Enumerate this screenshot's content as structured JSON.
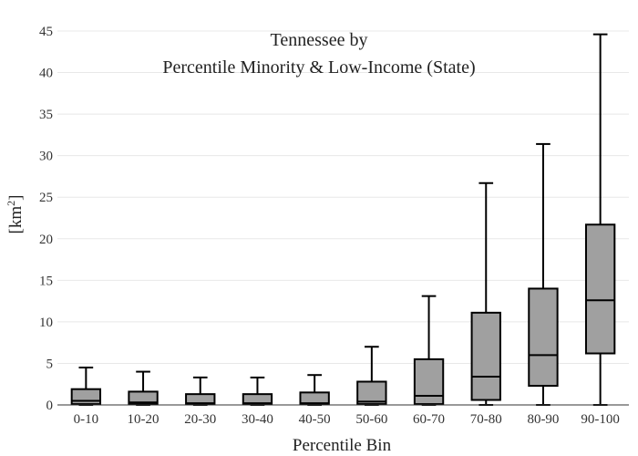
{
  "chart_data": {
    "type": "box",
    "title_lines": [
      "Tennessee  by",
      "Percentile Minority & Low-Income (State)"
    ],
    "xlabel": "Percentile Bin",
    "ylabel_base": "[km",
    "ylabel_sup": "2",
    "ylabel_end": "]",
    "categories": [
      "0-10",
      "10-20",
      "20-30",
      "30-40",
      "40-50",
      "50-60",
      "60-70",
      "70-80",
      "80-90",
      "90-100"
    ],
    "ylim": [
      0,
      45
    ],
    "yticks": [
      0,
      5,
      10,
      15,
      20,
      25,
      30,
      35,
      40,
      45
    ],
    "grid": true,
    "box_color": "#a0a0a0",
    "line_color": "#000000",
    "boxes": [
      {
        "category": "0-10",
        "low": 0,
        "q1": 0.1,
        "median": 0.5,
        "q3": 1.9,
        "high": 4.5
      },
      {
        "category": "10-20",
        "low": 0,
        "q1": 0.1,
        "median": 0.3,
        "q3": 1.6,
        "high": 4.0
      },
      {
        "category": "20-30",
        "low": 0,
        "q1": 0.1,
        "median": 0.2,
        "q3": 1.3,
        "high": 3.3
      },
      {
        "category": "30-40",
        "low": 0,
        "q1": 0.1,
        "median": 0.2,
        "q3": 1.3,
        "high": 3.3
      },
      {
        "category": "40-50",
        "low": 0,
        "q1": 0.1,
        "median": 0.2,
        "q3": 1.5,
        "high": 3.6
      },
      {
        "category": "50-60",
        "low": 0,
        "q1": 0.1,
        "median": 0.4,
        "q3": 2.8,
        "high": 7.0
      },
      {
        "category": "60-70",
        "low": 0,
        "q1": 0.1,
        "median": 1.1,
        "q3": 5.5,
        "high": 13.1
      },
      {
        "category": "70-80",
        "low": 0,
        "q1": 0.6,
        "median": 3.4,
        "q3": 11.1,
        "high": 26.7
      },
      {
        "category": "80-90",
        "low": 0,
        "q1": 2.3,
        "median": 6.0,
        "q3": 14.0,
        "high": 31.4
      },
      {
        "category": "90-100",
        "low": 0,
        "q1": 6.2,
        "median": 12.6,
        "q3": 21.7,
        "high": 44.6
      }
    ]
  }
}
